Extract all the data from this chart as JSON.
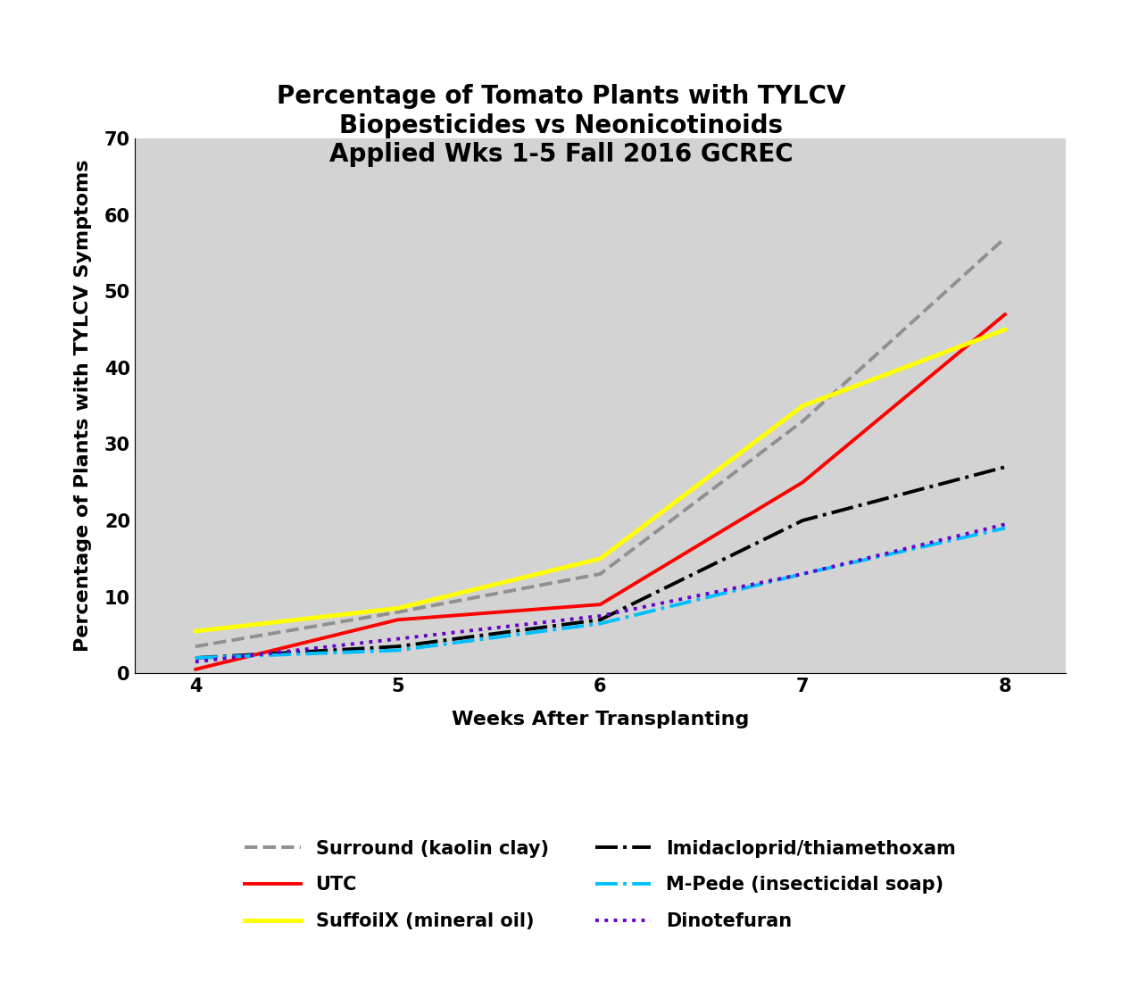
{
  "title": "Percentage of Tomato Plants with TYLCV\nBiopesticides vs Neonicotinoids\nApplied Wks 1-5 Fall 2016 GCREC",
  "xlabel": "Weeks After Transplanting",
  "ylabel": "Percentage of Plants with TYLCV Symptoms",
  "weeks": [
    4,
    5,
    6,
    7,
    8
  ],
  "xlim": [
    3.7,
    8.3
  ],
  "ylim": [
    0,
    70
  ],
  "yticks": [
    0,
    10,
    20,
    30,
    40,
    50,
    60,
    70
  ],
  "xticks": [
    4,
    5,
    6,
    7,
    8
  ],
  "plot_bg_color": "#d3d3d3",
  "fig_bg_color": "#ffffff",
  "series": [
    {
      "name": "Surround (kaolin clay)",
      "values": [
        3.5,
        8.0,
        13.0,
        33.0,
        57.0
      ],
      "color": "#909090",
      "linestyle": "--",
      "linewidth": 2.8
    },
    {
      "name": "UTC",
      "values": [
        0.5,
        7.0,
        9.0,
        25.0,
        47.0
      ],
      "color": "#ff0000",
      "linestyle": "-",
      "linewidth": 2.8
    },
    {
      "name": "SuffoilX (mineral oil)",
      "values": [
        5.5,
        8.5,
        15.0,
        35.0,
        45.0
      ],
      "color": "#ffff00",
      "linestyle": "-",
      "linewidth": 3.5
    },
    {
      "name": "Imidacloprid/thiamethoxam",
      "values": [
        2.0,
        3.5,
        7.0,
        20.0,
        27.0
      ],
      "color": "#000000",
      "linestyle": "-.",
      "linewidth": 2.8
    },
    {
      "name": "M-Pede (insecticidal soap)",
      "values": [
        2.0,
        3.0,
        6.5,
        13.0,
        19.0
      ],
      "color": "#00bfff",
      "linestyle": "-.",
      "linewidth": 2.8
    },
    {
      "name": "Dinotefuran",
      "values": [
        1.5,
        4.5,
        7.5,
        13.0,
        19.5
      ],
      "color": "#6600cc",
      "linestyle": ":",
      "linewidth": 2.8
    }
  ],
  "legend_fontsize": 15,
  "title_fontsize": 20,
  "axis_label_fontsize": 16,
  "tick_fontsize": 15
}
